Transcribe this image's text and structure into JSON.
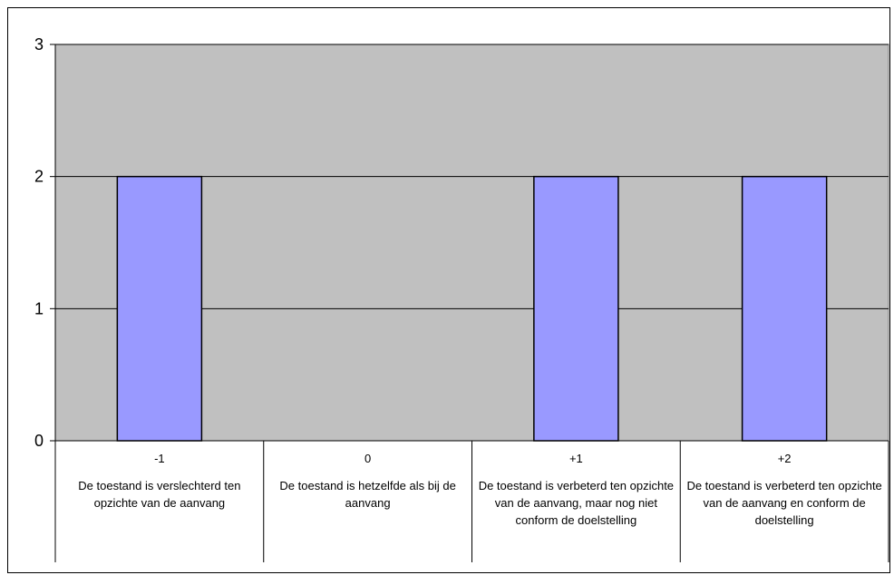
{
  "chart_data": {
    "type": "bar",
    "categories": [
      {
        "code": "-1",
        "description": "De toestand is verslechterd ten opzichte van de aanvang"
      },
      {
        "code": "0",
        "description": "De toestand is hetzelfde als bij de aanvang"
      },
      {
        "code": "+1",
        "description": "De toestand is verbeterd ten opzichte van de aanvang, maar nog niet conform de doelstelling"
      },
      {
        "code": "+2",
        "description": "De toestand is verbeterd ten opzichte van de aanvang en conform de doelstelling"
      }
    ],
    "values": [
      2,
      0,
      2,
      2
    ],
    "ylim": [
      0,
      3
    ],
    "yticks": [
      "0",
      "1",
      "2",
      "3"
    ],
    "grid": true,
    "colors": {
      "bar": "#9999ff",
      "plot_background": "#c0c0c0"
    }
  }
}
